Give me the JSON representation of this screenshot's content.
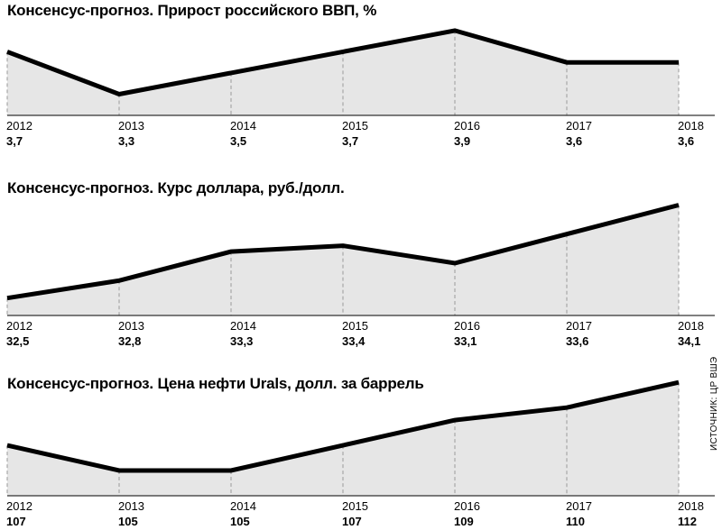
{
  "source_note": "ИСТОЧНИК: ЦР ВШЭ",
  "style": {
    "line_color": "#000000",
    "area_fill": "#e6e6e6",
    "grid_color": "#999999"
  },
  "chart_data": [
    {
      "type": "area",
      "title": "Консенсус-прогноз. Прирост российского ВВП, %",
      "categories": [
        "2012",
        "2013",
        "2014",
        "2015",
        "2016",
        "2017",
        "2018"
      ],
      "values": [
        3.7,
        3.3,
        3.5,
        3.7,
        3.9,
        3.6,
        3.6
      ],
      "value_labels": [
        "3,7",
        "3,3",
        "3,5",
        "3,7",
        "3,9",
        "3,6",
        "3,6"
      ],
      "ylim": [
        3.1,
        3.95
      ],
      "grid": "vertical-dashed"
    },
    {
      "type": "area",
      "title": "Консенсус-прогноз. Курс доллара, руб./долл.",
      "categories": [
        "2012",
        "2013",
        "2014",
        "2015",
        "2016",
        "2017",
        "2018"
      ],
      "values": [
        32.5,
        32.8,
        33.3,
        33.4,
        33.1,
        33.6,
        34.1
      ],
      "value_labels": [
        "32,5",
        "32,8",
        "33,3",
        "33,4",
        "33,1",
        "33,6",
        "34,1"
      ],
      "ylim": [
        32.2,
        34.2
      ],
      "grid": "vertical-dashed"
    },
    {
      "type": "area",
      "title": "Консенсус-прогноз. Цена нефти Urals, долл. за баррель",
      "categories": [
        "2012",
        "2013",
        "2014",
        "2015",
        "2016",
        "2017",
        "2018"
      ],
      "values": [
        107,
        105,
        105,
        107,
        109,
        110,
        112
      ],
      "value_labels": [
        "107",
        "105",
        "105",
        "107",
        "109",
        "110",
        "112"
      ],
      "ylim": [
        103,
        112.3
      ],
      "grid": "vertical-dashed"
    }
  ]
}
